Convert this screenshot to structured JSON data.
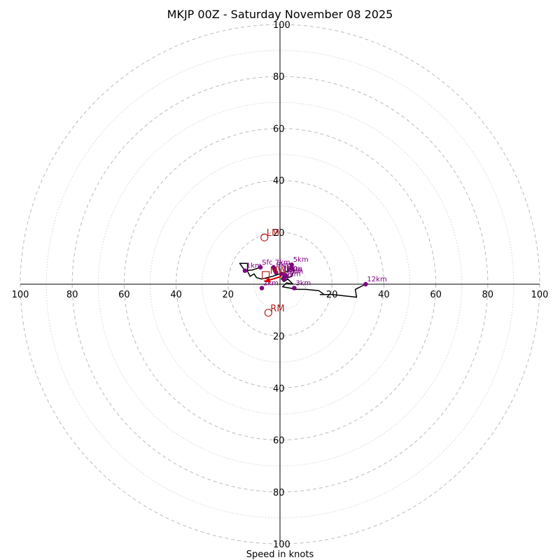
{
  "chart_data": {
    "type": "hodograph",
    "title": "MKJP 00Z - Saturday November 08 2025",
    "xlabel": "Speed in knots",
    "units": "knots",
    "range": [
      -100,
      100
    ],
    "ring_major_step": 20,
    "ring_minor_step": 10,
    "tick_labels": {
      "x_left": [
        "100",
        "80",
        "60",
        "40",
        "20"
      ],
      "x_right": [
        "20",
        "40",
        "60",
        "80",
        "100"
      ],
      "y_up": [
        "20",
        "40",
        "60",
        "80",
        "100"
      ],
      "y_down": [
        "20",
        "40",
        "60",
        "80",
        "100"
      ]
    },
    "trace": [
      {
        "u": -7.5,
        "v": 6.5
      },
      {
        "u": -10.5,
        "v": 5.5
      },
      {
        "u": -13.5,
        "v": 5.2
      },
      {
        "u": -15.5,
        "v": 8.0
      },
      {
        "u": -12.5,
        "v": 8.0
      },
      {
        "u": -12.5,
        "v": 5.0
      },
      {
        "u": -11.5,
        "v": 3.0
      },
      {
        "u": -10.0,
        "v": 4.0
      },
      {
        "u": -9.0,
        "v": 2.5
      },
      {
        "u": -7.0,
        "v": 2.0
      },
      {
        "u": -5.0,
        "v": 2.5
      },
      {
        "u": -3.0,
        "v": 3.0
      },
      {
        "u": -1.5,
        "v": 3.5
      },
      {
        "u": 0.0,
        "v": 4.0
      },
      {
        "u": 1.5,
        "v": 4.5
      },
      {
        "u": 3.0,
        "v": 5.0
      },
      {
        "u": 4.5,
        "v": 7.0
      },
      {
        "u": 5.5,
        "v": 5.5
      },
      {
        "u": 4.5,
        "v": 3.0
      },
      {
        "u": 3.0,
        "v": 2.5
      },
      {
        "u": 1.5,
        "v": 3.5
      },
      {
        "u": 0.5,
        "v": 2.0
      },
      {
        "u": 1.5,
        "v": 1.0
      },
      {
        "u": 3.0,
        "v": 2.0
      },
      {
        "u": 4.0,
        "v": 1.0
      },
      {
        "u": 5.0,
        "v": 0.0
      },
      {
        "u": 2.5,
        "v": 0.5
      },
      {
        "u": 1.0,
        "v": -1.0
      },
      {
        "u": 4.0,
        "v": -1.5
      },
      {
        "u": 6.0,
        "v": -2.0
      },
      {
        "u": 10.0,
        "v": -2.0
      },
      {
        "u": 15.0,
        "v": -2.5
      },
      {
        "u": 17.0,
        "v": -4.0
      },
      {
        "u": 15.5,
        "v": -4.0
      },
      {
        "u": 20.0,
        "v": -4.0
      },
      {
        "u": 25.0,
        "v": -4.5
      },
      {
        "u": 29.5,
        "v": -5.0
      },
      {
        "u": 29.0,
        "v": -2.0
      },
      {
        "u": 30.0,
        "v": -1.5
      },
      {
        "u": 33.0,
        "v": 0.0
      }
    ],
    "height_markers": [
      {
        "label": "Sfc",
        "u": -7.5,
        "v": 6.5
      },
      {
        "label": "1km",
        "u": -13.5,
        "v": 5.2
      },
      {
        "label": "2km",
        "u": -7.0,
        "v": -1.5
      },
      {
        "label": "3km",
        "u": 5.5,
        "v": -1.5
      },
      {
        "label": "4km",
        "u": 1.5,
        "v": 2.0
      },
      {
        "label": "5km",
        "u": 4.5,
        "v": 7.5
      },
      {
        "label": "6km",
        "u": 2.0,
        "v": 3.5
      },
      {
        "label": "7km",
        "u": -2.5,
        "v": 6.5
      },
      {
        "label": "8km",
        "u": -2.0,
        "v": 5.5
      },
      {
        "label": "9km",
        "u": 2.5,
        "v": 3.0
      },
      {
        "label": "10km",
        "u": 0.5,
        "v": 4.0
      },
      {
        "label": "11km",
        "u": -1.5,
        "v": 4.5
      },
      {
        "label": "12km",
        "u": 33.0,
        "v": 0.0
      }
    ],
    "storm_motion": [
      {
        "label": "LM",
        "u": -6.0,
        "v": 18.0
      },
      {
        "label": "RM",
        "u": -4.5,
        "v": -11.0
      }
    ],
    "mean_wind": {
      "label": "MW",
      "u": -5.5,
      "v": 3.5
    },
    "bunkers_arrow": {
      "from_u": 0.5,
      "from_v": 3.0,
      "to_u": -6.0,
      "to_v": 1.0
    },
    "colors": {
      "trace": "#000000",
      "height_marker": "#800080",
      "storm_motion": "#b22222",
      "arrow": "#dd0000",
      "ring_major": "#bbbbbb",
      "ring_minor": "#d4d4d4"
    }
  }
}
